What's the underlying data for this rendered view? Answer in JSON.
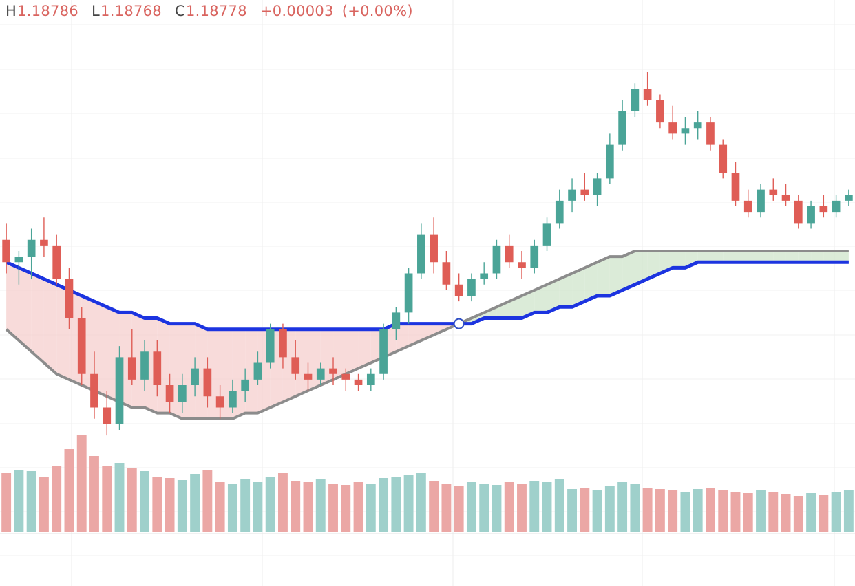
{
  "legend": {
    "high_label": "H",
    "high_value": "1.18786",
    "low_label": "L",
    "low_value": "1.18768",
    "close_label": "C",
    "close_value": "1.18778",
    "change": "+0.00003",
    "change_pct": "(+0.00%)"
  },
  "colors": {
    "up": "#4aa497",
    "down": "#df5d56",
    "vol_up": "#9fd0cb",
    "vol_down": "#eba7a5",
    "ma_thick": "#1c34e0",
    "ma_gray": "#8c8c8c",
    "bb": "#5e9a3c",
    "tenkan": "#3d8fe0",
    "kijun": "#7a1f1f",
    "orange": "#e68a35",
    "cloud_bull": "#cfe4cb",
    "cloud_bear": "#f6cfcd",
    "dots_blue": "#1a3ad8",
    "dots_orange": "#e6883a"
  },
  "chart_data": {
    "type": "candlestick",
    "instrument_label": "",
    "ylim": [
      1.185,
      1.193
    ],
    "reference_line": 1.1878,
    "candles": [
      [
        1.1892,
        1.1895,
        1.1886,
        1.1888
      ],
      [
        1.1888,
        1.189,
        1.1884,
        1.1889
      ],
      [
        1.1889,
        1.1894,
        1.1885,
        1.1892
      ],
      [
        1.1892,
        1.1896,
        1.1889,
        1.1891
      ],
      [
        1.1891,
        1.1893,
        1.1884,
        1.1885
      ],
      [
        1.1885,
        1.1887,
        1.1876,
        1.1878
      ],
      [
        1.1878,
        1.188,
        1.1866,
        1.1868
      ],
      [
        1.1868,
        1.1872,
        1.186,
        1.1862
      ],
      [
        1.1862,
        1.1865,
        1.1857,
        1.1859
      ],
      [
        1.1859,
        1.1873,
        1.1858,
        1.1871
      ],
      [
        1.1871,
        1.1876,
        1.1866,
        1.1867
      ],
      [
        1.1867,
        1.1874,
        1.1865,
        1.1872
      ],
      [
        1.1872,
        1.1874,
        1.1864,
        1.1866
      ],
      [
        1.1866,
        1.1868,
        1.1861,
        1.1863
      ],
      [
        1.1863,
        1.1868,
        1.1861,
        1.1866
      ],
      [
        1.1866,
        1.1871,
        1.1864,
        1.1869
      ],
      [
        1.1869,
        1.1871,
        1.1862,
        1.1864
      ],
      [
        1.1864,
        1.1866,
        1.186,
        1.1862
      ],
      [
        1.1862,
        1.1867,
        1.1861,
        1.1865
      ],
      [
        1.1865,
        1.1869,
        1.1863,
        1.1867
      ],
      [
        1.1867,
        1.1872,
        1.1866,
        1.187
      ],
      [
        1.187,
        1.1877,
        1.1869,
        1.1876
      ],
      [
        1.1876,
        1.1877,
        1.1869,
        1.1871
      ],
      [
        1.1871,
        1.1874,
        1.1867,
        1.1868
      ],
      [
        1.1868,
        1.187,
        1.1865,
        1.1867
      ],
      [
        1.1867,
        1.187,
        1.1866,
        1.1869
      ],
      [
        1.1869,
        1.1871,
        1.1866,
        1.1868
      ],
      [
        1.1868,
        1.1869,
        1.1865,
        1.1867
      ],
      [
        1.1867,
        1.1868,
        1.1865,
        1.1866
      ],
      [
        1.1866,
        1.1869,
        1.1865,
        1.1868
      ],
      [
        1.1868,
        1.1877,
        1.1867,
        1.1876
      ],
      [
        1.1876,
        1.188,
        1.1874,
        1.1879
      ],
      [
        1.1879,
        1.1887,
        1.1877,
        1.1886
      ],
      [
        1.1886,
        1.1895,
        1.1885,
        1.1893
      ],
      [
        1.1893,
        1.1896,
        1.1886,
        1.1888
      ],
      [
        1.1888,
        1.189,
        1.1883,
        1.1884
      ],
      [
        1.1884,
        1.1886,
        1.1881,
        1.1882
      ],
      [
        1.1882,
        1.1886,
        1.1881,
        1.1885
      ],
      [
        1.1885,
        1.1888,
        1.1884,
        1.1886
      ],
      [
        1.1886,
        1.1892,
        1.1885,
        1.1891
      ],
      [
        1.1891,
        1.1893,
        1.1887,
        1.1888
      ],
      [
        1.1888,
        1.189,
        1.1885,
        1.1887
      ],
      [
        1.1887,
        1.1892,
        1.1886,
        1.1891
      ],
      [
        1.1891,
        1.1896,
        1.189,
        1.1895
      ],
      [
        1.1895,
        1.1901,
        1.1894,
        1.1899
      ],
      [
        1.1899,
        1.1903,
        1.1897,
        1.1901
      ],
      [
        1.1901,
        1.1904,
        1.1899,
        1.19
      ],
      [
        1.19,
        1.1904,
        1.1898,
        1.1903
      ],
      [
        1.1903,
        1.1911,
        1.1902,
        1.1909
      ],
      [
        1.1909,
        1.1917,
        1.1908,
        1.1915
      ],
      [
        1.1915,
        1.192,
        1.1914,
        1.1919
      ],
      [
        1.1919,
        1.1922,
        1.1916,
        1.1917
      ],
      [
        1.1917,
        1.1918,
        1.1912,
        1.1913
      ],
      [
        1.1913,
        1.1916,
        1.191,
        1.1911
      ],
      [
        1.1911,
        1.1914,
        1.1909,
        1.1912
      ],
      [
        1.1912,
        1.1915,
        1.191,
        1.1913
      ],
      [
        1.1913,
        1.1914,
        1.1908,
        1.1909
      ],
      [
        1.1909,
        1.191,
        1.1903,
        1.1904
      ],
      [
        1.1904,
        1.1906,
        1.1898,
        1.1899
      ],
      [
        1.1899,
        1.1901,
        1.1896,
        1.1897
      ],
      [
        1.1897,
        1.1902,
        1.1896,
        1.1901
      ],
      [
        1.1901,
        1.1903,
        1.1899,
        1.19
      ],
      [
        1.19,
        1.1902,
        1.1898,
        1.1899
      ],
      [
        1.1899,
        1.19,
        1.1894,
        1.1895
      ],
      [
        1.1895,
        1.1899,
        1.1894,
        1.1898
      ],
      [
        1.1898,
        1.19,
        1.1896,
        1.1897
      ],
      [
        1.1897,
        1.19,
        1.1896,
        1.1899
      ],
      [
        1.1899,
        1.1901,
        1.1898,
        1.19
      ]
    ],
    "volume": [
      85,
      90,
      88,
      80,
      95,
      120,
      140,
      110,
      95,
      100,
      92,
      88,
      80,
      78,
      75,
      84,
      90,
      72,
      70,
      76,
      72,
      80,
      85,
      74,
      72,
      76,
      70,
      68,
      72,
      70,
      78,
      80,
      82,
      86,
      74,
      70,
      66,
      72,
      70,
      68,
      72,
      70,
      74,
      72,
      76,
      62,
      64,
      60,
      66,
      72,
      70,
      64,
      62,
      60,
      58,
      62,
      64,
      60,
      58,
      56,
      60,
      58,
      55,
      52,
      56,
      54,
      58,
      60
    ],
    "series": [
      {
        "values": [
          1.1888,
          1.1887,
          1.1886,
          1.1885,
          1.1884,
          1.1883,
          1.1882,
          1.1881,
          1.188,
          1.1879,
          1.1879,
          1.1878,
          1.1878,
          1.1877,
          1.1877,
          1.1877,
          1.1876,
          1.1876,
          1.1876,
          1.1876,
          1.1876,
          1.1876,
          1.1876,
          1.1876,
          1.1876,
          1.1876,
          1.1876,
          1.1876,
          1.1876,
          1.1876,
          1.1876,
          1.1877,
          1.1877,
          1.1877,
          1.1877,
          1.1877,
          1.1877,
          1.1877,
          1.1878,
          1.1878,
          1.1878,
          1.1878,
          1.1879,
          1.1879,
          1.188,
          1.188,
          1.1881,
          1.1882,
          1.1882,
          1.1883,
          1.1884,
          1.1885,
          1.1886,
          1.1887,
          1.1887,
          1.1888,
          1.1888,
          1.1888,
          1.1888,
          1.1888,
          1.1888,
          1.1888,
          1.1888,
          1.1888,
          1.1888,
          1.1888,
          1.1888,
          1.1888
        ]
      },
      {
        "values": [
          1.1876,
          1.1874,
          1.1872,
          1.187,
          1.1868,
          1.1867,
          1.1866,
          1.1865,
          1.1864,
          1.1863,
          1.1862,
          1.1862,
          1.1861,
          1.1861,
          1.186,
          1.186,
          1.186,
          1.186,
          1.186,
          1.1861,
          1.1861,
          1.1862,
          1.1863,
          1.1864,
          1.1865,
          1.1866,
          1.1867,
          1.1868,
          1.1869,
          1.187,
          1.1871,
          1.1872,
          1.1873,
          1.1874,
          1.1875,
          1.1876,
          1.1877,
          1.1878,
          1.1879,
          1.188,
          1.1881,
          1.1882,
          1.1883,
          1.1884,
          1.1885,
          1.1886,
          1.1887,
          1.1888,
          1.1889,
          1.1889,
          1.189,
          1.189,
          1.189,
          1.189,
          1.189,
          1.189,
          1.189,
          1.189,
          1.189,
          1.189,
          1.189,
          1.189,
          1.189,
          1.189,
          1.189,
          1.189,
          1.189,
          1.189
        ]
      }
    ]
  }
}
